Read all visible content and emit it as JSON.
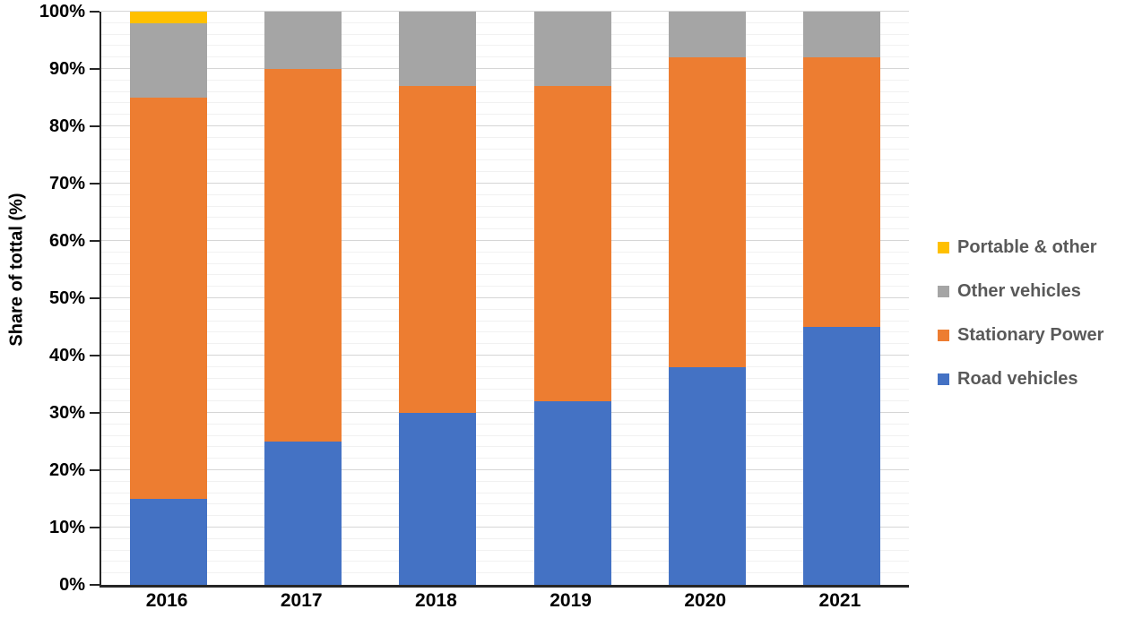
{
  "chart_data": {
    "type": "bar",
    "stacked": true,
    "percent_stacked": true,
    "title": "",
    "xlabel": "",
    "ylabel": "Share of tottal (%)",
    "categories": [
      "2016",
      "2017",
      "2018",
      "2019",
      "2020",
      "2021"
    ],
    "series": [
      {
        "name": "Road vehicles",
        "color": "#4472C4",
        "values": [
          15,
          25,
          30,
          32,
          38,
          45
        ]
      },
      {
        "name": "Stationary Power",
        "color": "#ED7D31",
        "values": [
          70,
          65,
          57,
          55,
          54,
          47
        ]
      },
      {
        "name": "Other vehicles",
        "color": "#A5A5A5",
        "values": [
          13,
          10,
          13,
          13,
          8,
          8
        ]
      },
      {
        "name": "Portable & other",
        "color": "#FFC000",
        "values": [
          2,
          0,
          0,
          0,
          0,
          0
        ]
      }
    ],
    "ylim": [
      0,
      100
    ],
    "ytick_step": 10,
    "minor_tick_step": 2,
    "ytick_labels": [
      "0%",
      "10%",
      "20%",
      "30%",
      "40%",
      "50%",
      "60%",
      "70%",
      "80%",
      "90%",
      "100%"
    ],
    "grid": "horizontal, major every 10% with faint minor lines every 2%",
    "legend_position": "right",
    "legend_order": [
      "Portable & other",
      "Other vehicles",
      "Stationary Power",
      "Road vehicles"
    ]
  },
  "colors": {
    "background": "#ffffff",
    "axis_line": "#262626",
    "major_grid": "#d6d6d6",
    "minor_grid": "#f1f1f1",
    "axis_text": "#000000",
    "legend_text": "#595959"
  }
}
